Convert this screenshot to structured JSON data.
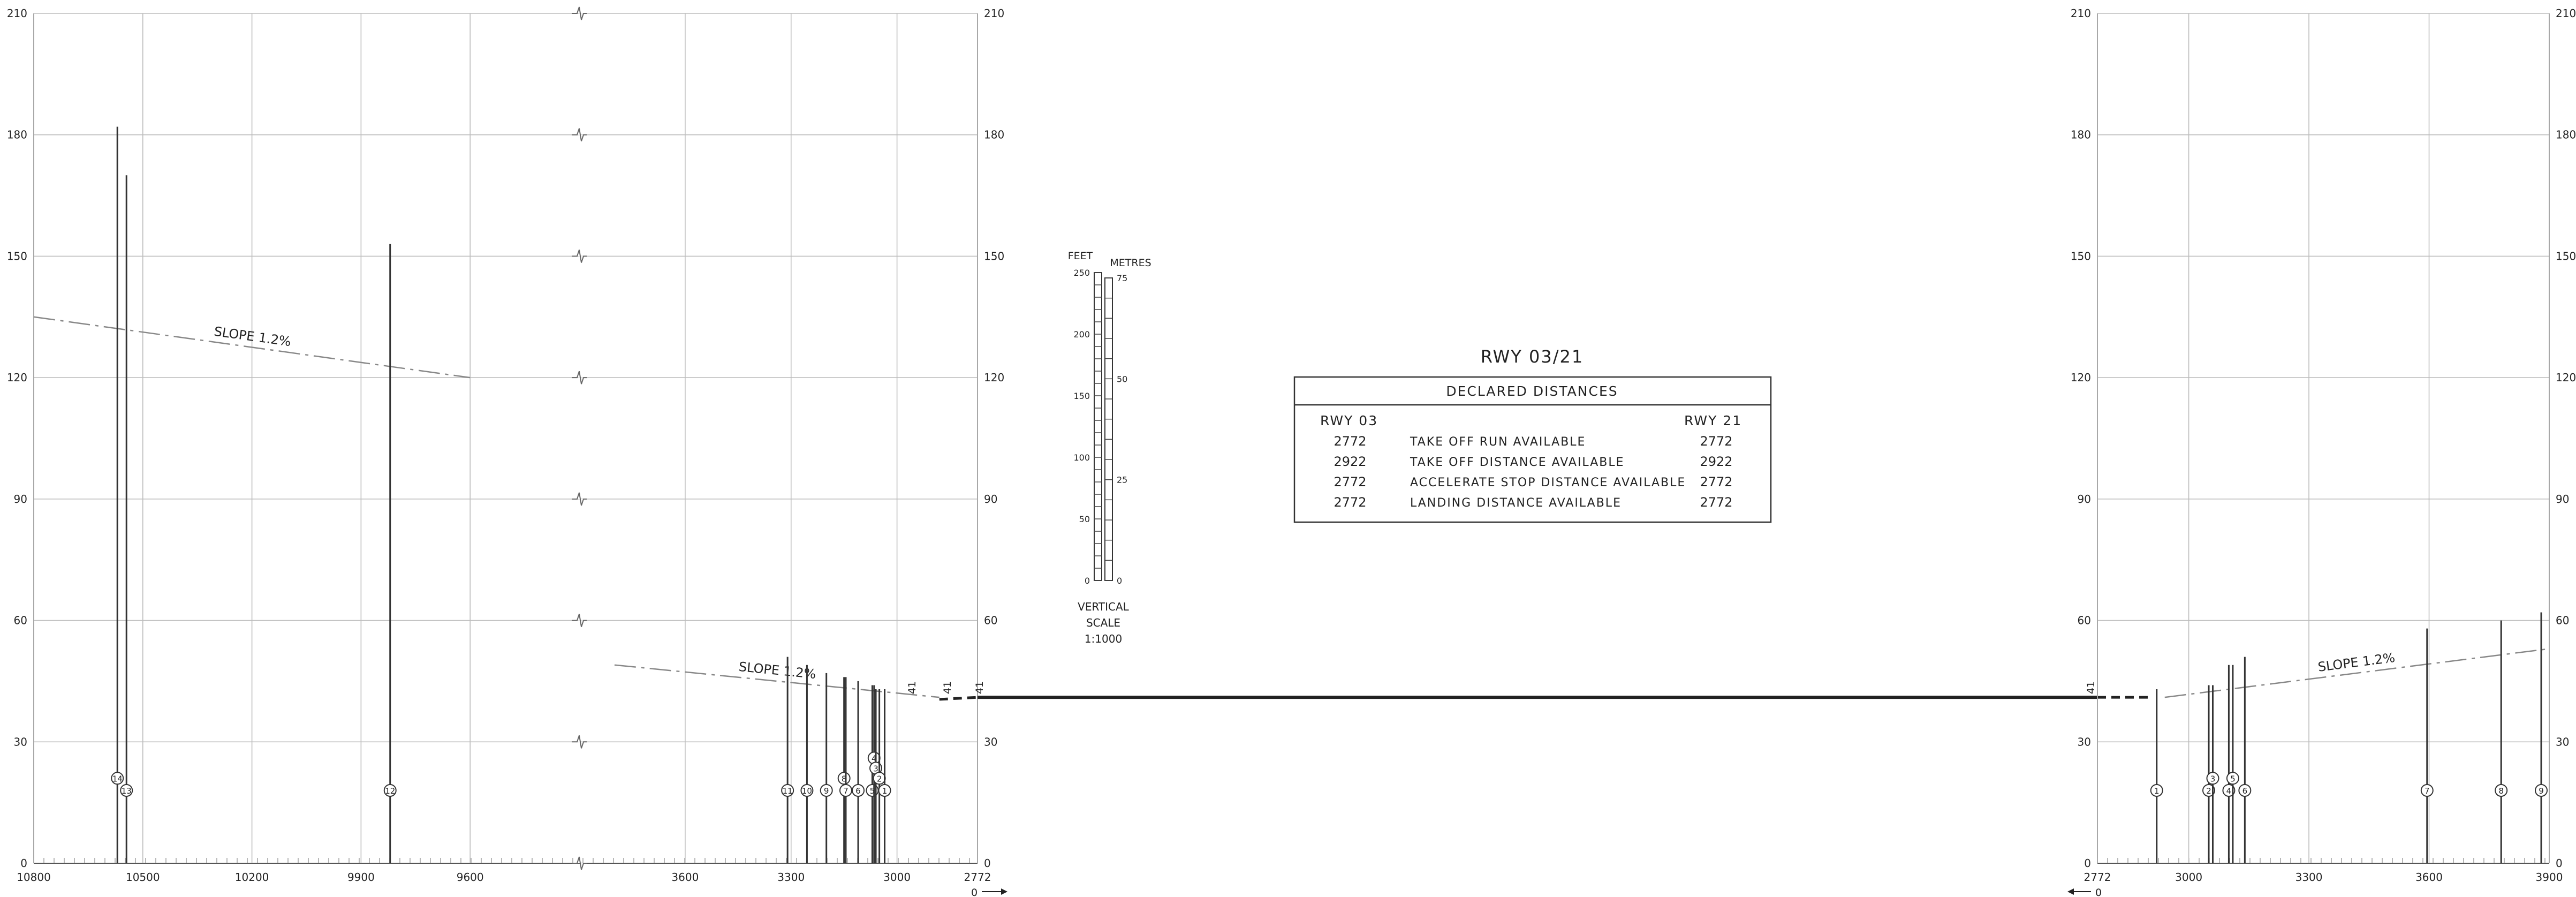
{
  "y_axis": {
    "min": 0,
    "max": 210,
    "ticks": [
      0,
      30,
      60,
      90,
      120,
      150,
      180,
      210
    ]
  },
  "left_panel": {
    "segment_a": {
      "x_range": [
        10800,
        9300
      ],
      "x_ticks": [
        10800,
        10500,
        10200,
        9900,
        9600
      ]
    },
    "segment_b": {
      "x_range": [
        3900,
        2772
      ],
      "x_ticks": [
        3600,
        3300,
        3000,
        2772
      ]
    },
    "origin_label": "0",
    "slopes": [
      {
        "segment": "a",
        "label": "SLOPE 1.2%",
        "from": [
          10800,
          135
        ],
        "to": [
          9600,
          120
        ]
      },
      {
        "segment": "b",
        "label": "SLOPE 1.2%",
        "from": [
          3800,
          49
        ],
        "to": [
          2880,
          41
        ]
      }
    ],
    "threshold_labels": [
      "41",
      "41",
      "41"
    ],
    "obstacles": [
      {
        "id": "14",
        "segment": "a",
        "x": 10570,
        "h": 182,
        "label_h": 21
      },
      {
        "id": "13",
        "segment": "a",
        "x": 10545,
        "h": 170,
        "label_h": 18
      },
      {
        "id": "12",
        "segment": "a",
        "x": 9820,
        "h": 153,
        "label_h": 18
      },
      {
        "id": "11",
        "segment": "b",
        "x": 3310,
        "h": 51,
        "label_h": 18
      },
      {
        "id": "10",
        "segment": "b",
        "x": 3255,
        "h": 49,
        "label_h": 18
      },
      {
        "id": "9",
        "segment": "b",
        "x": 3200,
        "h": 47,
        "label_h": 18
      },
      {
        "id": "8",
        "segment": "b",
        "x": 3150,
        "h": 46,
        "label_h": 21
      },
      {
        "id": "7",
        "segment": "b",
        "x": 3145,
        "h": 46,
        "label_h": 18
      },
      {
        "id": "6",
        "segment": "b",
        "x": 3110,
        "h": 45,
        "label_h": 18
      },
      {
        "id": "5",
        "segment": "b",
        "x": 3070,
        "h": 44,
        "label_h": 18
      },
      {
        "id": "4",
        "segment": "b",
        "x": 3065,
        "h": 44,
        "label_h": 26
      },
      {
        "id": "3",
        "segment": "b",
        "x": 3060,
        "h": 43,
        "label_h": 23.5
      },
      {
        "id": "2",
        "segment": "b",
        "x": 3050,
        "h": 43,
        "label_h": 21
      },
      {
        "id": "1",
        "segment": "b",
        "x": 3035,
        "h": 43,
        "label_h": 18
      }
    ]
  },
  "right_panel": {
    "x_range": [
      2772,
      3900
    ],
    "x_ticks": [
      2772,
      3000,
      3300,
      3600,
      3900
    ],
    "origin_label": "0",
    "slope": {
      "label": "SLOPE 1.2%",
      "from": [
        2940,
        41
      ],
      "to": [
        3900,
        53
      ]
    },
    "threshold_labels": [
      "41"
    ],
    "obstacles": [
      {
        "id": "1",
        "x": 2920,
        "h": 43,
        "label_h": 18
      },
      {
        "id": "2",
        "x": 3050,
        "h": 44,
        "label_h": 18
      },
      {
        "id": "3",
        "x": 3060,
        "h": 44,
        "label_h": 21
      },
      {
        "id": "4",
        "x": 3100,
        "h": 49,
        "label_h": 18
      },
      {
        "id": "5",
        "x": 3110,
        "h": 49,
        "label_h": 21
      },
      {
        "id": "6",
        "x": 3140,
        "h": 51,
        "label_h": 18
      },
      {
        "id": "7",
        "x": 3595,
        "h": 58,
        "label_h": 18
      },
      {
        "id": "8",
        "x": 3780,
        "h": 60,
        "label_h": 18
      },
      {
        "id": "9",
        "x": 3880,
        "h": 62,
        "label_h": 18
      }
    ]
  },
  "vertical_scale": {
    "feet_label": "FEET",
    "metres_label": "METRES",
    "feet_ticks": [
      "250",
      "200",
      "150",
      "100",
      "50",
      "0"
    ],
    "metres_ticks": [
      "75",
      "50",
      "25",
      "0"
    ],
    "caption": [
      "VERTICAL",
      "SCALE",
      "1:1000"
    ]
  },
  "declared_distances": {
    "runway_title": "RWY 03/21",
    "table_title": "DECLARED DISTANCES",
    "col_left": "RWY 03",
    "col_right": "RWY 21",
    "rows": [
      {
        "left": "2772",
        "label": "TAKE OFF RUN AVAILABLE",
        "right": "2772"
      },
      {
        "left": "2922",
        "label": "TAKE OFF DISTANCE AVAILABLE",
        "right": "2922"
      },
      {
        "left": "2772",
        "label": "ACCELERATE STOP DISTANCE AVAILABLE",
        "right": "2772"
      },
      {
        "left": "2772",
        "label": "LANDING DISTANCE AVAILABLE",
        "right": "2772"
      }
    ]
  }
}
